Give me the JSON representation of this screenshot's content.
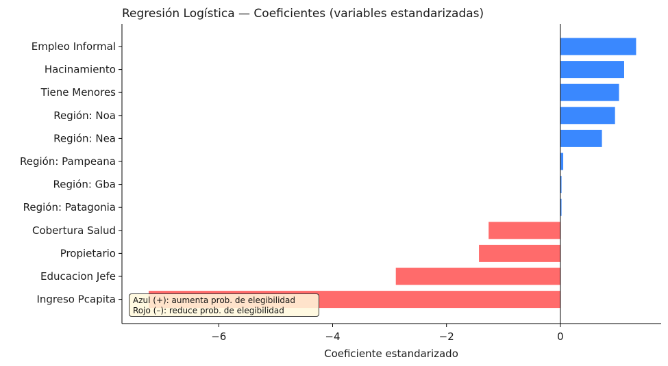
{
  "chart_data": {
    "type": "bar",
    "orientation": "horizontal",
    "title": "Regresión Logística — Coeficientes (variables estandarizadas)",
    "xlabel": "Coeficiente estandarizado",
    "ylabel": "",
    "xlim": [
      -7.7,
      1.77
    ],
    "xticks": [
      -6,
      -4,
      -2,
      0
    ],
    "xtick_labels": [
      "−6",
      "−4",
      "−2",
      "0"
    ],
    "categories": [
      "Empleo Informal",
      "Hacinamiento",
      "Tiene Menores",
      "Región: Noa",
      "Región: Nea",
      "Región: Pampeana",
      "Región: Gba",
      "Región: Patagonia",
      "Cobertura Salud",
      "Propietario",
      "Educacion Jefe",
      "Ingreso Pcapita"
    ],
    "values": [
      1.33,
      1.12,
      1.03,
      0.96,
      0.73,
      0.05,
      0.02,
      0.02,
      -1.26,
      -1.43,
      -2.89,
      -7.23
    ],
    "colors": {
      "positive": "#3a88fe",
      "negative": "#ff6b6b"
    },
    "grid": false,
    "annotation": {
      "line1": "Azul (+): aumenta prob. de elegibilidad",
      "line2": "Rojo (–): reduce prob. de elegibilidad"
    }
  }
}
